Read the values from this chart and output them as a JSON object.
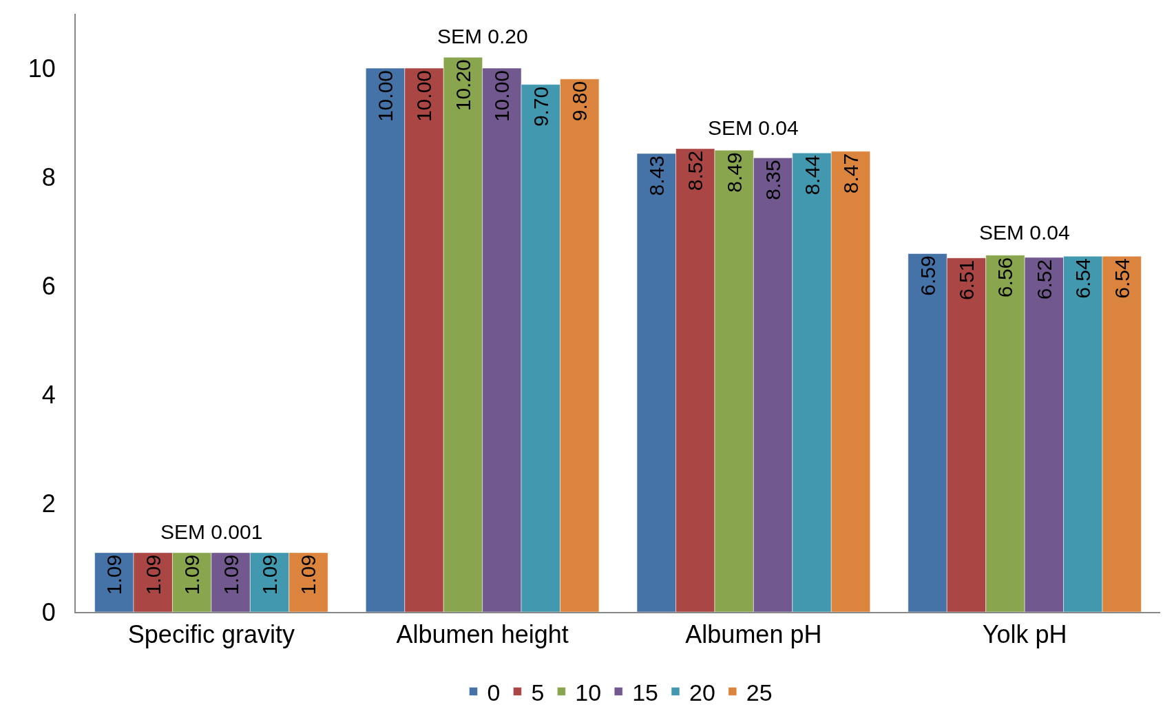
{
  "chart_data": {
    "type": "bar",
    "categories": [
      "Specific gravity",
      "Albumen height",
      "Albumen pH",
      "Yolk pH"
    ],
    "series": [
      {
        "name": "0",
        "color": "#4572a7",
        "values": [
          1.09,
          10.0,
          8.43,
          6.59
        ],
        "value_labels": [
          "1.09",
          "10.00",
          "8.43",
          "6.59"
        ]
      },
      {
        "name": "5",
        "color": "#aa4643",
        "values": [
          1.09,
          10.0,
          8.52,
          6.51
        ],
        "value_labels": [
          "1.09",
          "10.00",
          "8.52",
          "6.51"
        ]
      },
      {
        "name": "10",
        "color": "#89a54e",
        "values": [
          1.09,
          10.2,
          8.49,
          6.56
        ],
        "value_labels": [
          "1.09",
          "10.20",
          "8.49",
          "6.56"
        ]
      },
      {
        "name": "15",
        "color": "#71588f",
        "values": [
          1.09,
          10.0,
          8.35,
          6.52
        ],
        "value_labels": [
          "1.09",
          "10.00",
          "8.35",
          "6.52"
        ]
      },
      {
        "name": "20",
        "color": "#4198af",
        "values": [
          1.09,
          9.7,
          8.44,
          6.54
        ],
        "value_labels": [
          "1.09",
          "9.70",
          "8.44",
          "6.54"
        ]
      },
      {
        "name": "25",
        "color": "#db843d",
        "values": [
          1.09,
          9.8,
          8.47,
          6.54
        ],
        "value_labels": [
          "1.09",
          "9.80",
          "8.47",
          "6.54"
        ]
      }
    ],
    "annotations": [
      "SEM 0.001",
      "SEM 0.20",
      "SEM 0.04",
      "SEM 0.04"
    ],
    "ylim": [
      0,
      11
    ],
    "yticks": [
      0,
      2,
      4,
      6,
      8,
      10
    ],
    "legend": "bottom"
  }
}
